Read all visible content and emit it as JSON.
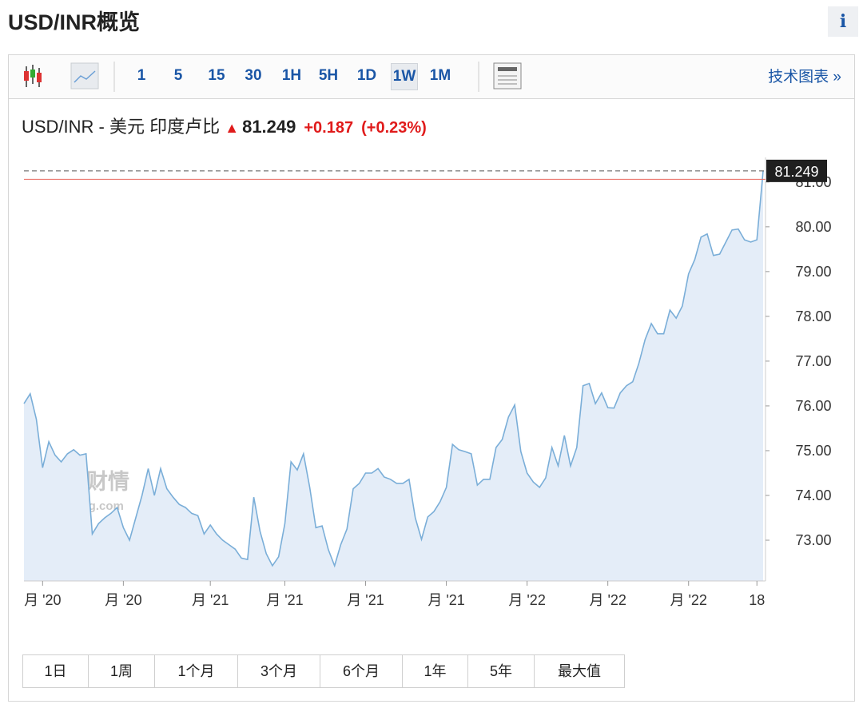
{
  "header": {
    "title": "USD/INR概览",
    "info": "i"
  },
  "toolbar": {
    "intervals": [
      "1",
      "5",
      "15",
      "30",
      "1H",
      "5H",
      "1D",
      "1W",
      "1M"
    ],
    "active": "1W",
    "link": "技术图表 »"
  },
  "quote": {
    "name": "USD/INR - 美元 印度卢比",
    "price": "81.249",
    "change": "+0.187",
    "change_pct": "(+0.23%)"
  },
  "watermark": {
    "brand": "英为财情",
    "site": "Investing.com"
  },
  "chart_data": {
    "type": "area",
    "color": "#7aaed8",
    "fill": "#e4edf8",
    "values": [
      76.05,
      76.27,
      75.7,
      74.62,
      75.2,
      74.9,
      74.75,
      74.93,
      75.02,
      74.9,
      74.93,
      73.14,
      73.37,
      73.5,
      73.6,
      73.73,
      73.28,
      73.0,
      73.5,
      74.0,
      74.6,
      74.0,
      74.6,
      74.15,
      73.96,
      73.8,
      73.73,
      73.6,
      73.55,
      73.14,
      73.34,
      73.14,
      73.0,
      72.9,
      72.8,
      72.6,
      72.57,
      73.96,
      73.2,
      72.7,
      72.43,
      72.63,
      73.37,
      74.75,
      74.57,
      74.93,
      74.18,
      73.28,
      73.32,
      72.79,
      72.43,
      72.9,
      73.25,
      74.15,
      74.27,
      74.5,
      74.5,
      74.6,
      74.41,
      74.36,
      74.27,
      74.27,
      74.36,
      73.5,
      73.02,
      73.52,
      73.64,
      73.86,
      74.18,
      75.14,
      75.02,
      74.98,
      74.93,
      74.23,
      74.36,
      74.36,
      75.07,
      75.25,
      75.75,
      76.02,
      74.98,
      74.5,
      74.3,
      74.18,
      74.39,
      75.07,
      74.66,
      75.34,
      74.66,
      75.07,
      76.45,
      76.5,
      76.05,
      76.29,
      75.96,
      75.95,
      76.29,
      76.45,
      76.54,
      76.95,
      77.48,
      77.84,
      77.61,
      77.61,
      78.14,
      77.96,
      78.23,
      78.95,
      79.27,
      79.77,
      79.84,
      79.36,
      79.39,
      79.66,
      79.93,
      79.95,
      79.71,
      79.66,
      79.71,
      81.249
    ],
    "categories": [
      null,
      null,
      null,
      "月 '20",
      null,
      null,
      null,
      null,
      null,
      null,
      null,
      null,
      null,
      null,
      null,
      null,
      "月 '20",
      null,
      null,
      null,
      null,
      null,
      null,
      null,
      null,
      null,
      null,
      null,
      null,
      null,
      "月 '21",
      null,
      null,
      null,
      null,
      null,
      null,
      null,
      null,
      null,
      null,
      null,
      "月 '21",
      null,
      null,
      null,
      null,
      null,
      null,
      null,
      null,
      null,
      null,
      null,
      null,
      "月 '21",
      null,
      null,
      null,
      null,
      null,
      null,
      null,
      null,
      null,
      null,
      null,
      null,
      "月 '21",
      null,
      null,
      null,
      null,
      null,
      null,
      null,
      null,
      null,
      null,
      null,
      null,
      "月 '22",
      null,
      null,
      null,
      null,
      null,
      null,
      null,
      null,
      null,
      null,
      null,
      null,
      "月 '22",
      null,
      null,
      null,
      null,
      null,
      null,
      null,
      null,
      null,
      null,
      null,
      null,
      "月 '22",
      null,
      null,
      null,
      null,
      null,
      null,
      null,
      null,
      null,
      null,
      "18",
      null
    ],
    "ylim": [
      72.09,
      81.55
    ],
    "yticks": [
      {
        "value": 73,
        "label": "73.00"
      },
      {
        "value": 74,
        "label": "74.00"
      },
      {
        "value": 75,
        "label": "75.00"
      },
      {
        "value": 76,
        "label": "76.00"
      },
      {
        "value": 77,
        "label": "77.00"
      },
      {
        "value": 78,
        "label": "78.00"
      },
      {
        "value": 79,
        "label": "79.00"
      },
      {
        "value": 80,
        "label": "80.00"
      },
      {
        "value": 81,
        "label": "81.00"
      }
    ],
    "prev_close": 81.062,
    "prev_close_color": "#e8685f"
  },
  "ranges": [
    "1日",
    "1周",
    "1个月",
    "3个月",
    "6个月",
    "1年",
    "5年",
    "最大值"
  ]
}
